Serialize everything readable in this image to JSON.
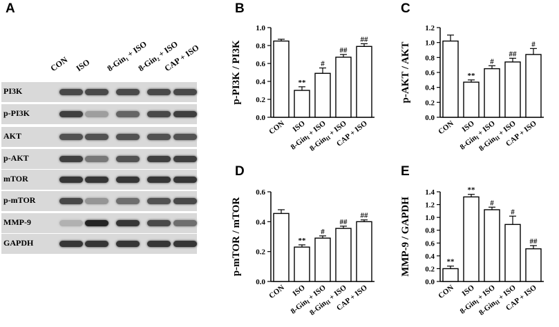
{
  "panels": {
    "a": "A",
    "b": "B",
    "c": "C",
    "d": "D",
    "e": "E"
  },
  "blot": {
    "lanes": [
      "CON",
      "ISO",
      "8-Gin₁ + ISO",
      "8-Gin₂ + ISO",
      "CAP + ISO"
    ],
    "rows": [
      {
        "label": "PI3K",
        "intensity": [
          0.75,
          0.75,
          0.75,
          0.75,
          0.75
        ]
      },
      {
        "label": "p-PI3K",
        "intensity": [
          0.8,
          0.3,
          0.6,
          0.75,
          0.8
        ]
      },
      {
        "label": "AKT",
        "intensity": [
          0.7,
          0.7,
          0.7,
          0.7,
          0.7
        ]
      },
      {
        "label": "p-AKT",
        "intensity": [
          0.8,
          0.5,
          0.7,
          0.8,
          0.8
        ]
      },
      {
        "label": "mTOR",
        "intensity": [
          0.85,
          0.85,
          0.85,
          0.85,
          0.85
        ]
      },
      {
        "label": "p-mTOR",
        "intensity": [
          0.75,
          0.35,
          0.55,
          0.7,
          0.75
        ]
      },
      {
        "label": "MMP-9",
        "intensity": [
          0.2,
          0.95,
          0.85,
          0.75,
          0.55
        ]
      },
      {
        "label": "GAPDH",
        "intensity": [
          0.85,
          0.85,
          0.85,
          0.85,
          0.85
        ]
      }
    ]
  },
  "chart_data": [
    {
      "type": "bar",
      "panel": "B",
      "ylabel": "p-PI3K / PI3K",
      "ylim": [
        0,
        1.0
      ],
      "yticks": [
        "0.0",
        "0.2",
        "0.4",
        "0.6",
        "0.8",
        "1.0"
      ],
      "categories": [
        "CON",
        "ISO",
        "8-Gin₁ + ISO",
        "8-Gin₂ + ISO",
        "CAP + ISO"
      ],
      "values": [
        0.85,
        0.3,
        0.49,
        0.67,
        0.79
      ],
      "errors": [
        0.02,
        0.04,
        0.06,
        0.03,
        0.03
      ],
      "annotations": [
        "",
        "**",
        "#",
        "##",
        "##"
      ]
    },
    {
      "type": "bar",
      "panel": "C",
      "ylabel": "p-AKT / AKT",
      "ylim": [
        0,
        1.2
      ],
      "yticks": [
        "0.0",
        "0.2",
        "0.4",
        "0.6",
        "0.8",
        "1.0",
        "1.2"
      ],
      "categories": [
        "CON",
        "ISO",
        "8-Gin₁ + ISO",
        "8-Gin₂ + ISO",
        "CAP + ISO"
      ],
      "values": [
        1.02,
        0.47,
        0.65,
        0.74,
        0.84
      ],
      "errors": [
        0.08,
        0.03,
        0.04,
        0.05,
        0.08
      ],
      "annotations": [
        "",
        "**",
        "#",
        "##",
        "#"
      ]
    },
    {
      "type": "bar",
      "panel": "D",
      "ylabel": "p-mTOR / mTOR",
      "ylim": [
        0,
        0.6
      ],
      "yticks": [
        "0.0",
        "0.2",
        "0.4",
        "0.6"
      ],
      "categories": [
        "CON",
        "ISO",
        "8-Gin₁ + ISO",
        "8-Gin₂ + ISO",
        "CAP + ISO"
      ],
      "values": [
        0.455,
        0.23,
        0.29,
        0.355,
        0.4
      ],
      "errors": [
        0.025,
        0.015,
        0.015,
        0.015,
        0.012
      ],
      "annotations": [
        "",
        "**",
        "#",
        "##",
        "##"
      ]
    },
    {
      "type": "bar",
      "panel": "E",
      "ylabel": "MMP-9 / GAPDH",
      "ylim": [
        0,
        1.4
      ],
      "yticks": [
        "0.0",
        "0.2",
        "0.4",
        "0.6",
        "0.8",
        "1.0",
        "1.2",
        "1.4"
      ],
      "categories": [
        "CON",
        "ISO",
        "8-Gin₁ + ISO",
        "8-Gin₂ + ISO",
        "CAP + ISO"
      ],
      "values": [
        0.2,
        1.32,
        1.12,
        0.89,
        0.51
      ],
      "errors": [
        0.04,
        0.04,
        0.04,
        0.13,
        0.05
      ],
      "annotations": [
        "**",
        "**",
        "#",
        "#",
        "##"
      ]
    }
  ]
}
